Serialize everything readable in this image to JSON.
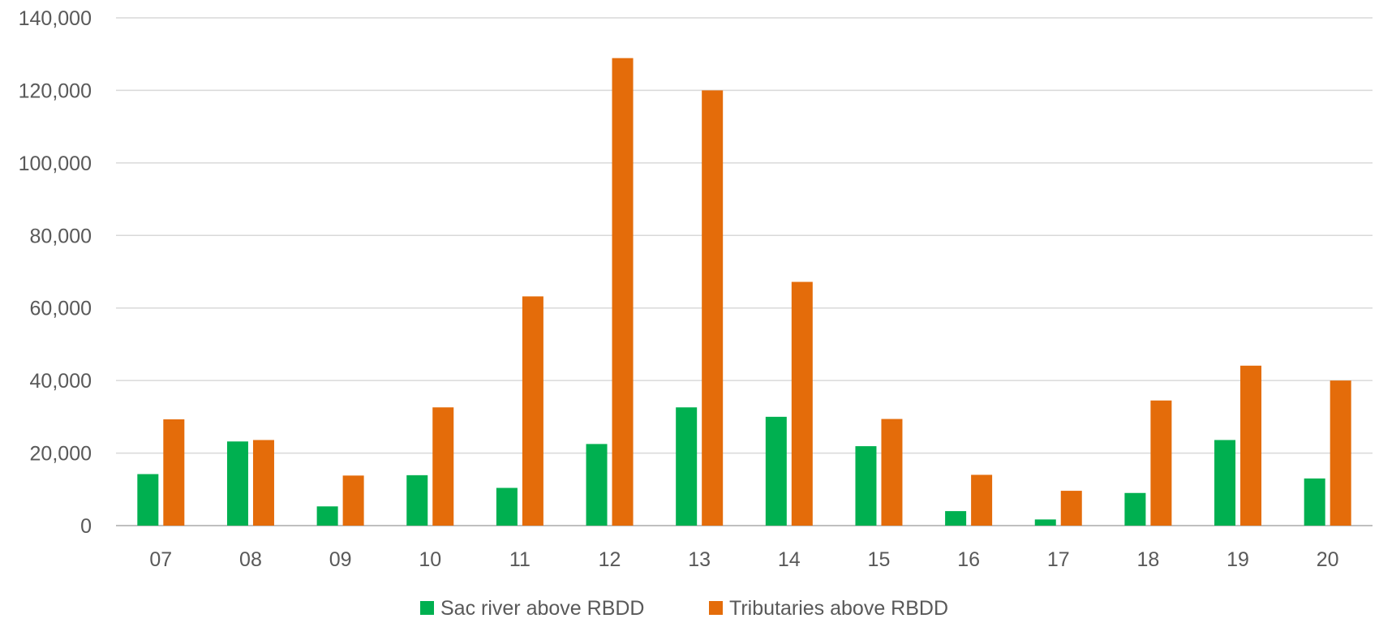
{
  "chart_data": {
    "type": "bar",
    "title": "",
    "xlabel": "",
    "ylabel": "",
    "categories": [
      "07",
      "08",
      "09",
      "10",
      "11",
      "12",
      "13",
      "14",
      "15",
      "16",
      "17",
      "18",
      "19",
      "20"
    ],
    "series": [
      {
        "name": "Sac river above RBDD",
        "color": "#00b050",
        "values": [
          14200,
          23200,
          5300,
          13900,
          10400,
          22500,
          32600,
          30000,
          21900,
          4000,
          1700,
          9000,
          23600,
          13000
        ]
      },
      {
        "name": "Tributaries above RBDD",
        "color": "#e46c0a",
        "values": [
          29300,
          23600,
          13800,
          32600,
          63200,
          128900,
          120000,
          67200,
          29400,
          14000,
          9600,
          34500,
          44100,
          40000
        ]
      }
    ],
    "ylim": [
      0,
      140000
    ],
    "yticks": [
      0,
      20000,
      40000,
      60000,
      80000,
      100000,
      120000,
      140000
    ],
    "ytick_labels": [
      "0",
      "20,000",
      "40,000",
      "60,000",
      "80,000",
      "100,000",
      "120,000",
      "140,000"
    ],
    "grid": true,
    "legend_position": "bottom"
  }
}
